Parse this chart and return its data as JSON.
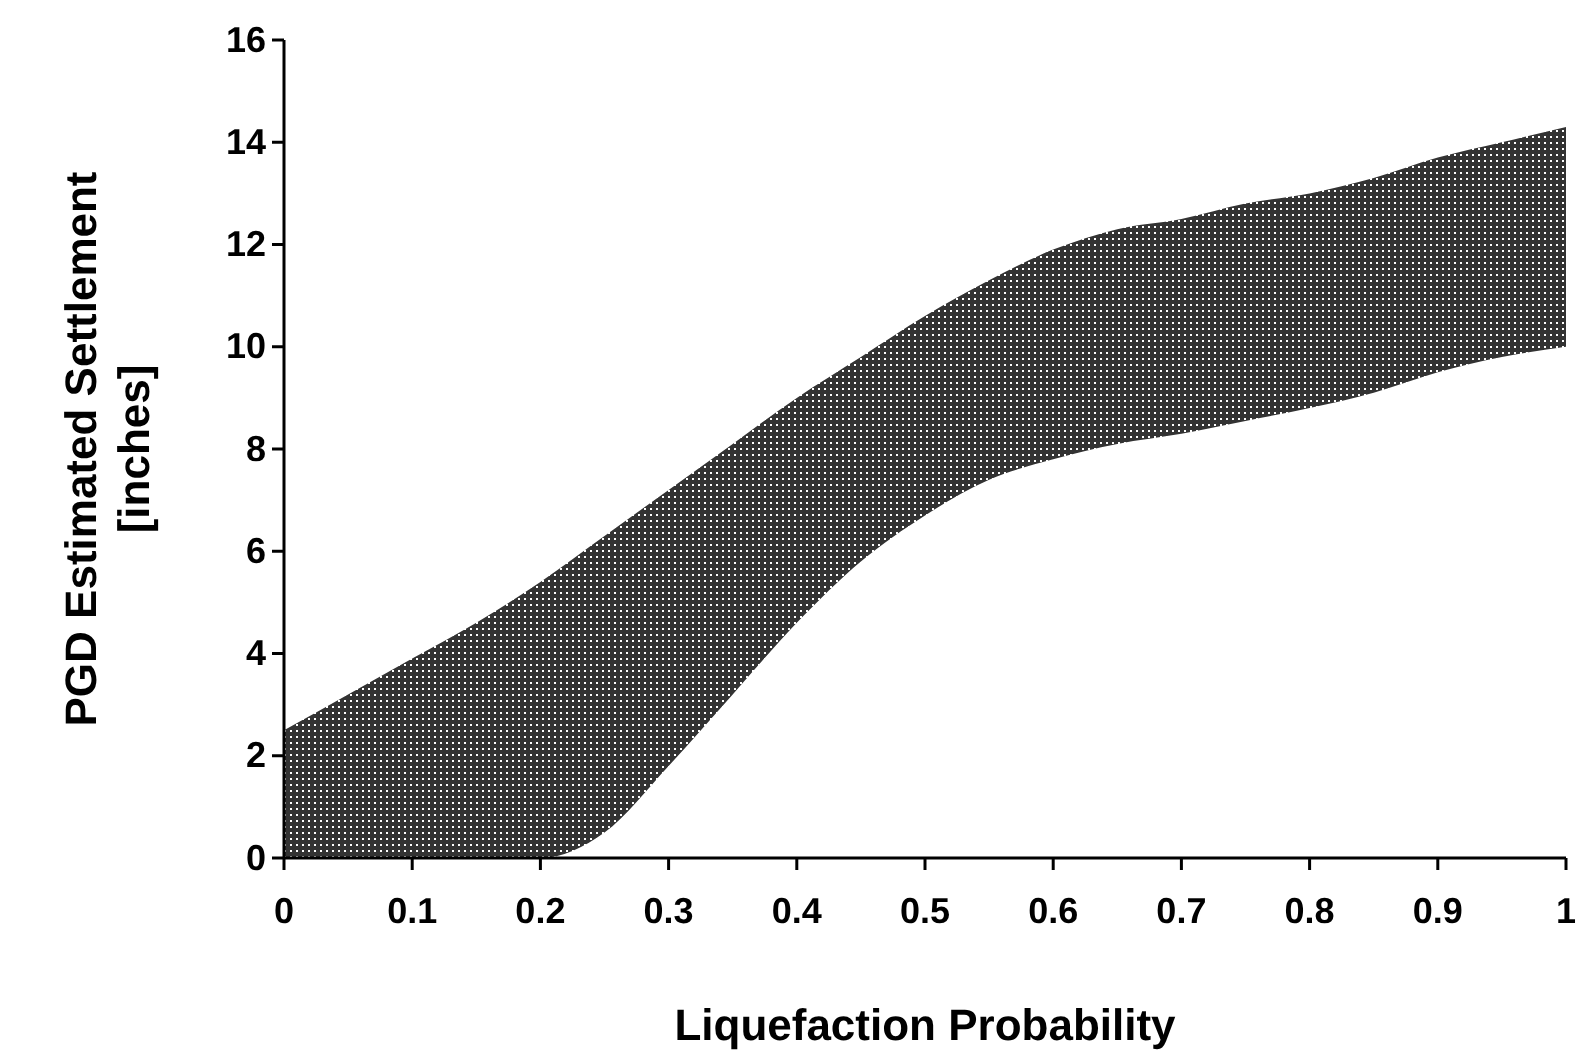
{
  "chart_data": {
    "type": "area",
    "xlabel": "Liquefaction Probability",
    "ylabel": "PGD Estimated Settlement [inches]",
    "x": [
      0,
      0.05,
      0.1,
      0.15,
      0.2,
      0.25,
      0.3,
      0.35,
      0.4,
      0.45,
      0.5,
      0.55,
      0.6,
      0.65,
      0.7,
      0.75,
      0.8,
      0.85,
      0.9,
      0.95,
      1
    ],
    "series": [
      {
        "color": "#333333",
        "values": [
          2.5,
          3.2,
          3.9,
          4.6,
          5.4,
          6.3,
          7.2,
          8.1,
          9.0,
          9.8,
          10.6,
          11.3,
          11.9,
          12.3,
          12.5,
          12.8,
          13.0,
          13.3,
          13.7,
          14.0,
          14.3
        ]
      },
      {
        "color": "#ffffff",
        "values": [
          0,
          0,
          0,
          0,
          0,
          0.5,
          1.8,
          3.2,
          4.6,
          5.8,
          6.7,
          7.4,
          7.8,
          8.1,
          8.3,
          8.55,
          8.8,
          9.1,
          9.5,
          9.8,
          10
        ]
      }
    ],
    "xlim": [
      0,
      1
    ],
    "xticks": [
      0,
      0.1,
      0.2,
      0.3,
      0.4,
      0.5,
      0.6,
      0.7,
      0.8,
      0.9,
      1
    ],
    "ylim": [
      0,
      16
    ],
    "yticks": [
      0,
      2,
      4,
      6,
      8,
      10,
      12,
      14,
      16
    ],
    "grid": false
  }
}
